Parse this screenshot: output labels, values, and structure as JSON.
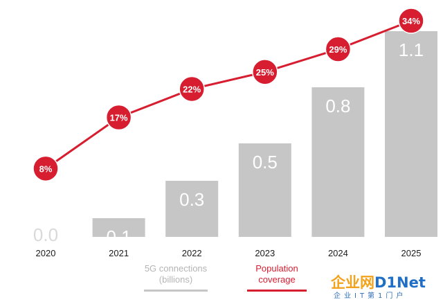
{
  "chart_data": {
    "type": "bar",
    "categories": [
      "2020",
      "2021",
      "2022",
      "2023",
      "2024",
      "2025"
    ],
    "series": [
      {
        "name": "5G connections (billions)",
        "type": "bar",
        "values": [
          0.0,
          0.1,
          0.3,
          0.5,
          0.8,
          1.1
        ],
        "labels": [
          "0.0",
          "0.1",
          "0.3",
          "0.5",
          "0.8",
          "1.1"
        ],
        "color": "#c6c6c6"
      },
      {
        "name": "Population coverage",
        "type": "line",
        "values": [
          8,
          17,
          22,
          25,
          29,
          34
        ],
        "labels": [
          "8%",
          "17%",
          "22%",
          "25%",
          "29%",
          "34%"
        ],
        "color": "#d71d30"
      }
    ],
    "bar_ylim": [
      0,
      1.1
    ],
    "line_ylim": [
      0,
      34
    ],
    "grid": false,
    "legend_position": "bottom"
  },
  "legend": {
    "connections_line1": "5G connections",
    "connections_line2": "(billions)",
    "coverage_line1": "Population",
    "coverage_line2": "coverage"
  },
  "watermark": {
    "cn_text": "企业网",
    "brand": "D1Net",
    "subtitle": "企业IT第1门户"
  },
  "colors": {
    "bar": "#c6c6c6",
    "bar_label": "#ffffff",
    "line": "#d71d30",
    "marker_text": "#ffffff",
    "axis_text": "#1a1a1a",
    "legend_connections": "#b5b5b5",
    "legend_coverage": "#d71d30"
  }
}
